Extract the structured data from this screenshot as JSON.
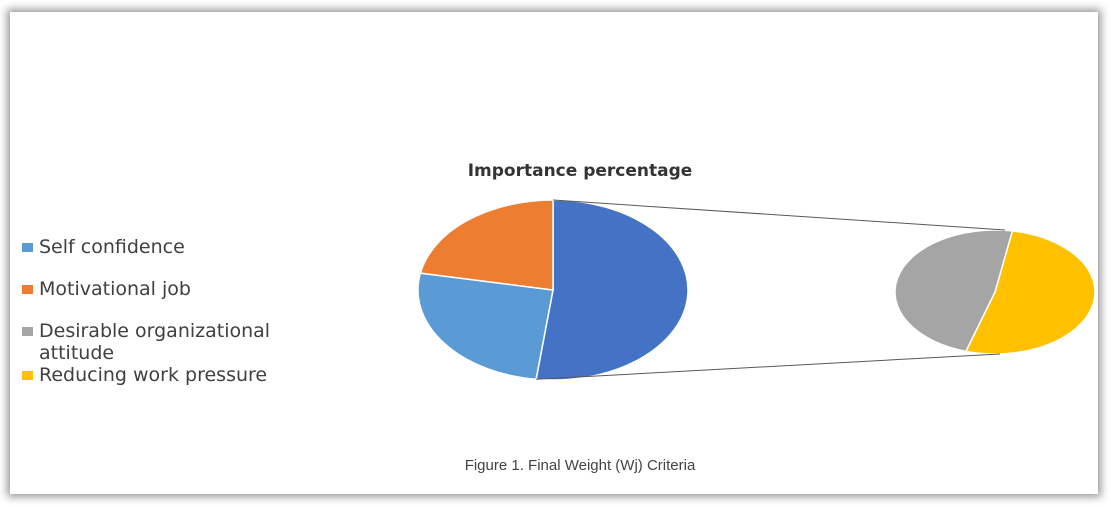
{
  "chart_data": {
    "type": "pie-of-pie",
    "title": "Importance percentage",
    "caption": "Figure 1. Final Weight (Wj) Criteria",
    "series": [
      {
        "name": "Self confidence",
        "color": "#5b9bd5",
        "values": [
          26
        ]
      },
      {
        "name": "Motivational job",
        "color": "#ed7d31",
        "values": [
          22
        ]
      },
      {
        "name": "Desirable organizational attitude",
        "color": "#a5a5a5",
        "values": [
          25
        ]
      },
      {
        "name": "Reducing work pressure",
        "color": "#ffc000",
        "values": [
          27
        ]
      }
    ],
    "other_color": "#4472c4",
    "legend": "left"
  }
}
